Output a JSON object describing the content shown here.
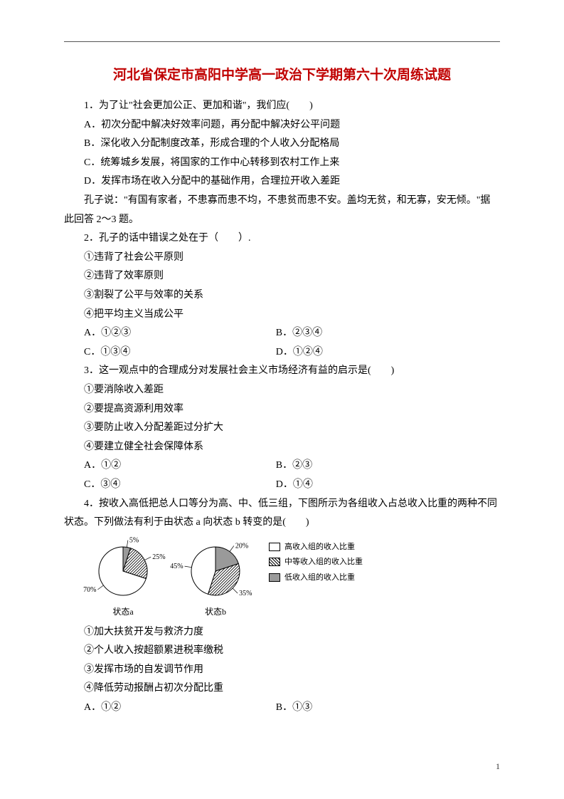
{
  "title": "河北省保定市高阳中学高一政治下学期第六十次周练试题",
  "q1": {
    "stem": "1．为了让\"社会更加公正、更加和谐\"，我们应(　　)",
    "A": "A．初次分配中解决好效率问题，再分配中解决好公平问题",
    "B": "B．深化收入分配制度改革，形成合理的个人收入分配格局",
    "C": "C．统筹城乡发展，将国家的工作中心转移到农村工作上来",
    "D": "D．发挥市场在收入分配中的基础作用，合理拉开收入差距"
  },
  "passage": "孔子说：\"有国有家者，不患寡而患不均，不患贫而患不安。盖均无贫，和无寡，安无倾。\"据此回答 2～3 题。",
  "q2": {
    "stem": "2．孔子的话中错误之处在于（　　）.",
    "o1": "①违背了社会公平原则",
    "o2": "②违背了效率原则",
    "o3": "③割裂了公平与效率的关系",
    "o4": "④把平均主义当成公平",
    "A": "A．①②③",
    "B": "B．②③④",
    "C": "C．①③④",
    "D": "D．①②④"
  },
  "q3": {
    "stem": "3．这一观点中的合理成分对发展社会主义市场经济有益的启示是(　　)",
    "o1": "①要消除收入差距",
    "o2": "②要提高资源利用效率",
    "o3": "③要防止收入分配差距过分扩大",
    "o4": "④要建立健全社会保障体系",
    "A": "A．①②",
    "B": "B．②③",
    "C": "C．③④",
    "D": "D．①④"
  },
  "q4": {
    "stem": "4．按收入高低把总人口等分为高、中、低三组，下图所示为各组收入占总收入比重的两种不同状态。下列做法有利于由状态 a 向状态 b 转变的是(　　)",
    "o1": "①加大扶贫开发与救济力度",
    "o2": "②个人收入按超额累进税率缴税",
    "o3": "③发挥市场的自发调节作用",
    "o4": "④降低劳动报酬占初次分配比重",
    "A": "A．①②",
    "B": "B．①③"
  },
  "chart": {
    "a": {
      "label": "状态a",
      "size": 90,
      "slices": [
        {
          "label": "5%",
          "value": 5,
          "fill": "gray"
        },
        {
          "label": "25%",
          "value": 25,
          "fill": "hatch"
        },
        {
          "label": "70%",
          "value": 70,
          "fill": "white"
        }
      ]
    },
    "b": {
      "label": "状态b",
      "size": 90,
      "slices": [
        {
          "label": "20%",
          "value": 20,
          "fill": "gray"
        },
        {
          "label": "35%",
          "value": 35,
          "fill": "hatch"
        },
        {
          "label": "45%",
          "value": 45,
          "fill": "white"
        }
      ]
    },
    "legend": {
      "high": "高收入组的收入比重",
      "mid": "中等收入组的收入比重",
      "low": "低收入组的收入比重"
    },
    "colors": {
      "white": "#ffffff",
      "gray": "#9a9a9a",
      "stroke": "#000000"
    }
  },
  "page_number": "1"
}
